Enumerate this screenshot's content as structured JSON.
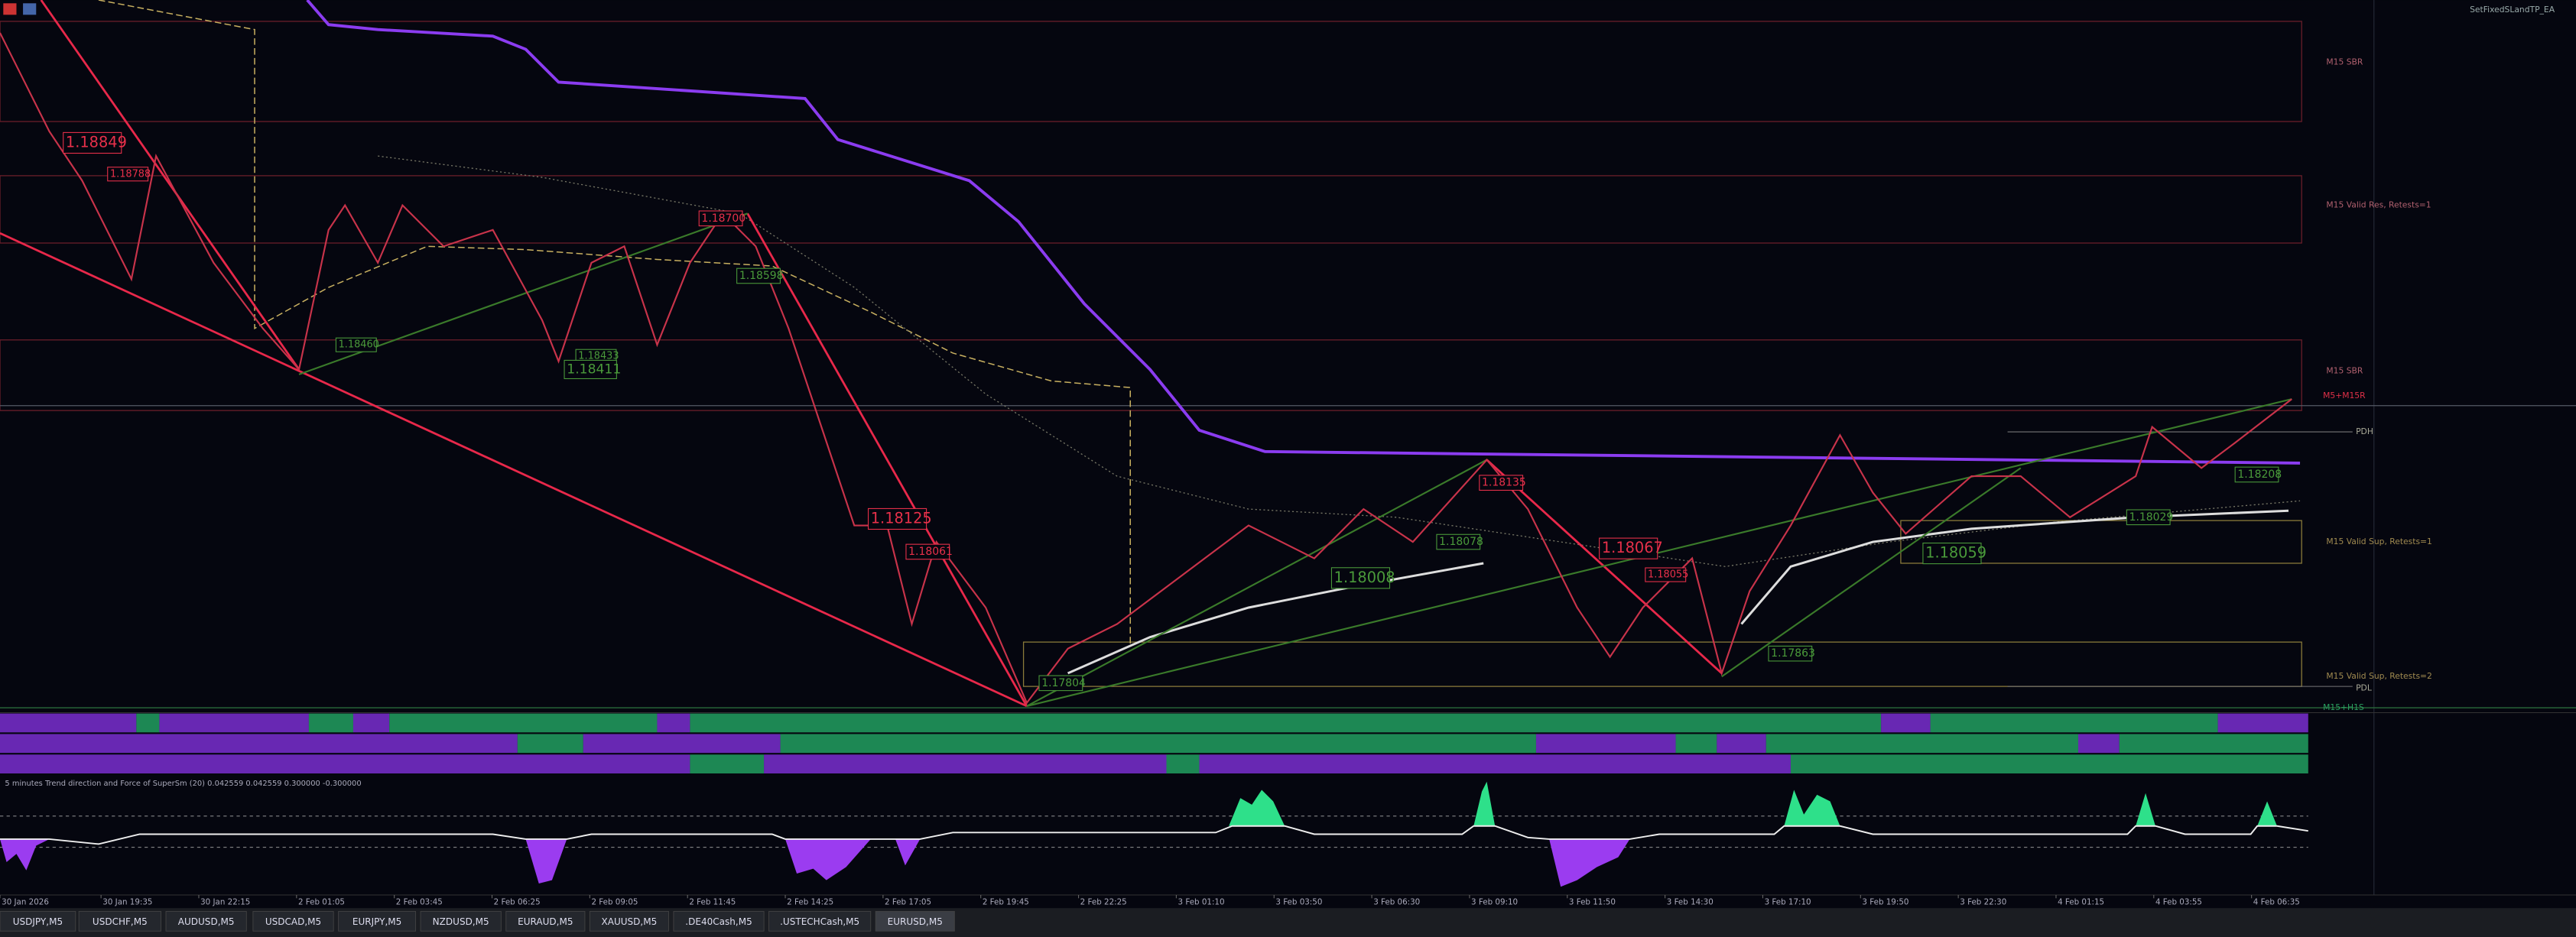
{
  "window": {
    "ea_label": "SetFixedSLandTP_EA"
  },
  "zones": [
    "M15 SBR",
    "M15 Valid Res, Retests=1",
    "M15 SBR",
    "M5+M15R",
    "PDH",
    "M15 Valid Sup, Retests=1",
    "M15 Valid Sup, Retests=2",
    "PDL",
    "M15+H1S"
  ],
  "price_labels": [
    "1.18849",
    "1.18788",
    "1.18700",
    "1.18598",
    "1.18460",
    "1.18433",
    "1.18411",
    "1.18125",
    "1.18061",
    "1.18008",
    "1.17804",
    "1.18135",
    "1.18078",
    "1.18067",
    "1.18055",
    "1.17863",
    "1.18059",
    "1.18029",
    "1.18208"
  ],
  "indicator": {
    "caption": "5 minutes Trend direction and Force of SuperSm (20) 0.042559 0.042559 0.300000 -0.300000"
  },
  "time_axis": [
    "30 Jan 2026",
    "30 Jan 19:35",
    "30 Jan 22:15",
    "2 Feb 01:05",
    "2 Feb 03:45",
    "2 Feb 06:25",
    "2 Feb 09:05",
    "2 Feb 11:45",
    "2 Feb 14:25",
    "2 Feb 17:05",
    "2 Feb 19:45",
    "2 Feb 22:25",
    "3 Feb 01:10",
    "3 Feb 03:50",
    "3 Feb 06:30",
    "3 Feb 09:10",
    "3 Feb 11:50",
    "3 Feb 14:30",
    "3 Feb 17:10",
    "3 Feb 19:50",
    "3 Feb 22:30",
    "4 Feb 01:15",
    "4 Feb 03:55",
    "4 Feb 06:35"
  ],
  "tabs": [
    "USDJPY,M5",
    "USDCHF,M5",
    "AUDUSD,M5",
    "USDCAD,M5",
    "EURJPY,M5",
    "NZDUSD,M5",
    "EURAUD,M5",
    "XAUUSD,M5",
    ".DE40Cash,M5",
    ".USTECHCash,M5",
    "EURUSD,M5"
  ]
}
